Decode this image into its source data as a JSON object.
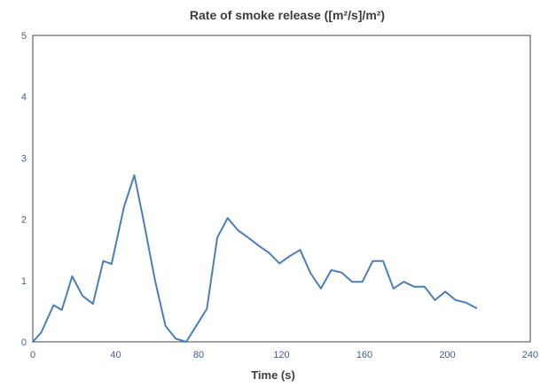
{
  "chart_data": {
    "type": "line",
    "title": "Rate of smoke release ([m²/s]/m²)",
    "xlabel": "Time (s)",
    "ylabel": "",
    "xlim": [
      0,
      240
    ],
    "ylim": [
      0,
      5
    ],
    "x_ticks": [
      0,
      40,
      80,
      120,
      160,
      200,
      240
    ],
    "y_ticks": [
      0,
      1,
      2,
      3,
      4,
      5
    ],
    "x_tick_labels": [
      "0",
      "40",
      "80",
      "120",
      "160",
      "200",
      "240"
    ],
    "y_tick_labels": [
      "0",
      "1",
      "2",
      "3",
      "4",
      "5"
    ],
    "grid": false,
    "legend": "none",
    "line_color": "#4a7fb8",
    "series": [
      {
        "x": [
          0,
          4,
          10,
          14,
          19,
          24,
          29,
          34,
          38,
          44,
          49,
          53,
          59,
          64,
          69,
          74,
          79,
          84,
          89,
          94,
          99,
          104,
          109,
          114,
          119,
          124,
          129,
          134,
          139,
          144,
          149,
          154,
          159,
          164,
          169,
          174,
          179,
          184,
          189,
          194,
          199,
          204,
          209,
          214
        ],
        "y": [
          0.0,
          0.15,
          0.6,
          0.52,
          1.07,
          0.75,
          0.62,
          1.32,
          1.27,
          2.2,
          2.72,
          2.05,
          1.0,
          0.26,
          0.05,
          0.0,
          0.27,
          0.54,
          1.7,
          2.02,
          1.82,
          1.7,
          1.57,
          1.45,
          1.28,
          1.4,
          1.5,
          1.12,
          0.87,
          1.17,
          1.13,
          0.98,
          0.98,
          1.32,
          1.32,
          0.87,
          0.98,
          0.9,
          0.9,
          0.68,
          0.82,
          0.68,
          0.64,
          0.55
        ]
      }
    ]
  }
}
